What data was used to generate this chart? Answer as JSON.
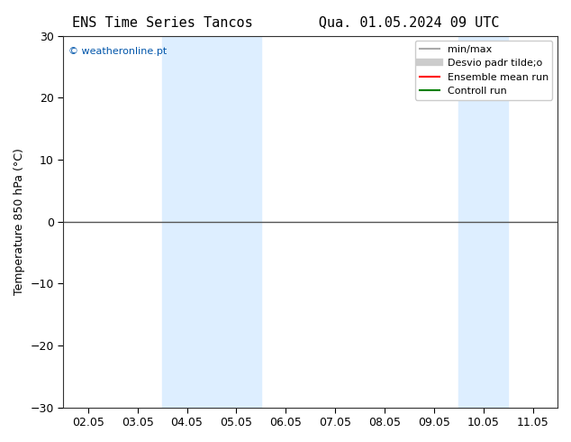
{
  "title_left": "ENS Time Series Tancos",
  "title_right": "Qua. 01.05.2024 09 UTC",
  "ylabel": "Temperature 850 hPa (°C)",
  "ylim": [
    -30,
    30
  ],
  "yticks": [
    -30,
    -20,
    -10,
    0,
    10,
    20,
    30
  ],
  "x_labels": [
    "02.05",
    "03.05",
    "04.05",
    "05.05",
    "06.05",
    "07.05",
    "08.05",
    "09.05",
    "10.05",
    "11.05"
  ],
  "shaded_columns": [
    2,
    3,
    8
  ],
  "shade_color": "#ddeeff",
  "watermark": "© weatheronline.pt",
  "watermark_color": "#0055aa",
  "legend_entries": [
    {
      "label": "min/max",
      "color": "#aaaaaa",
      "lw": 1.5
    },
    {
      "label": "Desvio padr tilde;o",
      "color": "#cccccc",
      "lw": 6
    },
    {
      "label": "Ensemble mean run",
      "color": "red",
      "lw": 1.5
    },
    {
      "label": "Controll run",
      "color": "green",
      "lw": 1.5
    }
  ],
  "hline_y": 0,
  "hline_color": "#555555",
  "hline_lw": 1.0,
  "bg_color": "#ffffff",
  "plot_bg_color": "#ffffff",
  "tick_fontsize": 9,
  "label_fontsize": 9,
  "title_fontsize": 11
}
